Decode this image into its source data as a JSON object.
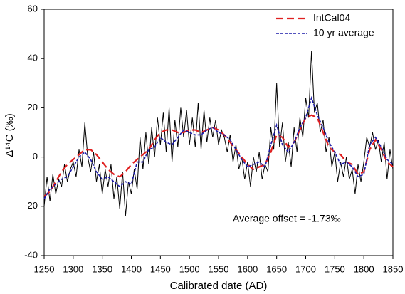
{
  "chart_data": {
    "type": "line",
    "x_label": "Calibrated date (AD)",
    "y_label": "Δ¹⁴C (‰)",
    "annotation": "Average offset = -1.73‰",
    "xlim": [
      1250,
      1850
    ],
    "xticks": [
      1250,
      1300,
      1350,
      1400,
      1450,
      1500,
      1550,
      1600,
      1650,
      1700,
      1750,
      1800,
      1850
    ],
    "ylim": [
      -40,
      60
    ],
    "yticks": [
      -40,
      -20,
      0,
      20,
      40,
      60
    ],
    "grid": false,
    "legend": "top-right",
    "series": [
      {
        "color": "#000000",
        "dash": "solid",
        "x": [
          1250,
          1255,
          1260,
          1265,
          1270,
          1275,
          1280,
          1285,
          1290,
          1295,
          1300,
          1305,
          1310,
          1315,
          1320,
          1325,
          1330,
          1335,
          1340,
          1345,
          1350,
          1355,
          1360,
          1365,
          1370,
          1375,
          1380,
          1385,
          1390,
          1395,
          1400,
          1405,
          1410,
          1415,
          1420,
          1425,
          1430,
          1435,
          1440,
          1445,
          1450,
          1455,
          1460,
          1465,
          1470,
          1475,
          1480,
          1485,
          1490,
          1495,
          1500,
          1505,
          1510,
          1515,
          1520,
          1525,
          1530,
          1535,
          1540,
          1545,
          1550,
          1555,
          1560,
          1565,
          1570,
          1575,
          1580,
          1585,
          1590,
          1595,
          1600,
          1605,
          1610,
          1615,
          1620,
          1625,
          1630,
          1635,
          1640,
          1645,
          1650,
          1655,
          1660,
          1665,
          1670,
          1675,
          1680,
          1685,
          1690,
          1695,
          1700,
          1705,
          1710,
          1715,
          1720,
          1725,
          1730,
          1735,
          1740,
          1745,
          1750,
          1755,
          1760,
          1765,
          1770,
          1775,
          1780,
          1785,
          1790,
          1795,
          1800,
          1805,
          1810,
          1815,
          1820,
          1825,
          1830,
          1835,
          1840,
          1845,
          1850
        ],
        "values": [
          -20,
          -8,
          -18,
          -7,
          -15,
          -9,
          -12,
          -3,
          -10,
          -5,
          -2,
          -8,
          3,
          -4,
          14,
          0,
          -6,
          2,
          -10,
          -3,
          -15,
          -5,
          -12,
          -3,
          -17,
          -8,
          -21,
          -6,
          -24,
          -10,
          -15,
          -5,
          -13,
          8,
          -5,
          10,
          -3,
          12,
          0,
          16,
          5,
          18,
          2,
          20,
          -2,
          15,
          4,
          20,
          8,
          19,
          5,
          16,
          4,
          22,
          3,
          19,
          6,
          16,
          8,
          15,
          5,
          11,
          8,
          2,
          9,
          -2,
          5,
          -5,
          0,
          -9,
          -2,
          -12,
          0,
          -6,
          2,
          -9,
          -3,
          -6,
          12,
          3,
          30,
          4,
          14,
          -2,
          6,
          -4,
          12,
          2,
          16,
          8,
          24,
          16,
          43,
          18,
          22,
          10,
          15,
          2,
          8,
          -4,
          2,
          -10,
          -2,
          -8,
          0,
          -9,
          -5,
          -15,
          -3,
          -10,
          -2,
          8,
          4,
          10,
          3,
          7,
          -2,
          6,
          -9,
          3,
          -5
        ]
      },
      {
        "name": "IntCal04",
        "color": "#e02020",
        "dash": "long",
        "x": [
          1250,
          1260,
          1270,
          1280,
          1290,
          1300,
          1310,
          1320,
          1330,
          1340,
          1350,
          1360,
          1370,
          1380,
          1390,
          1400,
          1410,
          1420,
          1430,
          1440,
          1450,
          1460,
          1470,
          1480,
          1490,
          1500,
          1510,
          1520,
          1530,
          1540,
          1550,
          1560,
          1570,
          1580,
          1590,
          1600,
          1610,
          1620,
          1630,
          1640,
          1650,
          1660,
          1670,
          1680,
          1690,
          1700,
          1710,
          1720,
          1730,
          1740,
          1750,
          1760,
          1770,
          1780,
          1790,
          1800,
          1810,
          1820,
          1830,
          1840,
          1850
        ],
        "values": [
          -16,
          -14,
          -10,
          -6,
          -3,
          -1,
          1,
          3,
          3,
          1,
          -2,
          -5,
          -7,
          -8,
          -6,
          -3,
          -1,
          1,
          3,
          7,
          10,
          11,
          11,
          10,
          10,
          11,
          11,
          10,
          11,
          12,
          11,
          9,
          6,
          3,
          0,
          -3,
          -5,
          -4,
          -3,
          2,
          9,
          8,
          4,
          6,
          11,
          16,
          17,
          16,
          10,
          4,
          2,
          1,
          -2,
          -3,
          -7,
          -6,
          3,
          7,
          3,
          -2,
          -4
        ]
      },
      {
        "name": "10 yr average",
        "color": "#1a1aa8",
        "dash": "short",
        "x": [
          1250,
          1260,
          1270,
          1280,
          1290,
          1300,
          1310,
          1320,
          1330,
          1340,
          1350,
          1360,
          1370,
          1380,
          1390,
          1400,
          1410,
          1420,
          1430,
          1440,
          1450,
          1460,
          1470,
          1480,
          1490,
          1500,
          1510,
          1520,
          1530,
          1540,
          1550,
          1560,
          1570,
          1580,
          1590,
          1600,
          1610,
          1620,
          1630,
          1640,
          1650,
          1660,
          1670,
          1680,
          1690,
          1700,
          1710,
          1720,
          1730,
          1740,
          1750,
          1760,
          1770,
          1780,
          1790,
          1800,
          1810,
          1820,
          1830,
          1840,
          1850
        ],
        "values": [
          -17,
          -13,
          -11,
          -9,
          -8,
          -4,
          0,
          2,
          -1,
          -6,
          -9,
          -8,
          -10,
          -12,
          -10,
          -11,
          -2,
          -2,
          3,
          4,
          8,
          6,
          5,
          8,
          11,
          10,
          9,
          9,
          11,
          12,
          10,
          9,
          7,
          3,
          -1,
          -4,
          -3,
          -2,
          -4,
          5,
          13,
          5,
          2,
          6,
          12,
          16,
          24,
          17,
          12,
          6,
          2,
          -3,
          -2,
          -4,
          -8,
          -7,
          5,
          8,
          4,
          -1,
          -3
        ]
      }
    ]
  }
}
